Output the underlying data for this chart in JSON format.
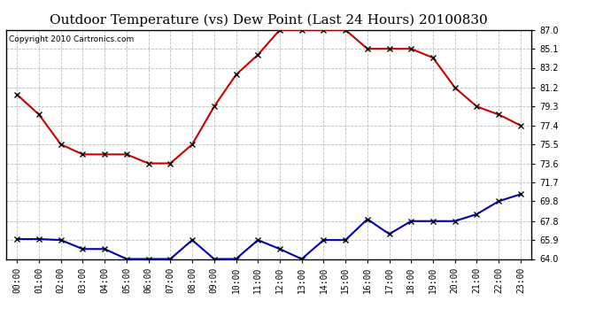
{
  "title": "Outdoor Temperature (vs) Dew Point (Last 24 Hours) 20100830",
  "copyright": "Copyright 2010 Cartronics.com",
  "hours": [
    "00:00",
    "01:00",
    "02:00",
    "03:00",
    "04:00",
    "05:00",
    "06:00",
    "07:00",
    "08:00",
    "09:00",
    "10:00",
    "11:00",
    "12:00",
    "13:00",
    "14:00",
    "15:00",
    "16:00",
    "17:00",
    "18:00",
    "19:00",
    "20:00",
    "21:00",
    "22:00",
    "23:00"
  ],
  "temp": [
    80.5,
    78.5,
    75.5,
    74.5,
    74.5,
    74.5,
    73.6,
    73.6,
    75.5,
    79.3,
    82.5,
    84.5,
    87.0,
    87.0,
    87.0,
    87.0,
    85.1,
    85.1,
    85.1,
    84.2,
    81.2,
    79.3,
    78.5,
    77.4
  ],
  "dewpoint": [
    66.0,
    66.0,
    65.9,
    65.0,
    65.0,
    64.0,
    64.0,
    64.0,
    65.9,
    64.0,
    64.0,
    65.9,
    65.0,
    64.0,
    65.9,
    65.9,
    68.0,
    66.5,
    67.8,
    67.8,
    67.8,
    68.5,
    69.8,
    70.5
  ],
  "temp_color": "#cc0000",
  "dew_color": "#0000bb",
  "ylim_min": 64.0,
  "ylim_max": 87.0,
  "yticks": [
    64.0,
    65.9,
    67.8,
    69.8,
    71.7,
    73.6,
    75.5,
    77.4,
    79.3,
    81.2,
    83.2,
    85.1,
    87.0
  ],
  "ytick_labels": [
    "64.0",
    "65.9",
    "67.8",
    "69.8",
    "71.7",
    "73.6",
    "75.5",
    "77.4",
    "79.3",
    "81.2",
    "83.2",
    "85.1",
    "87.0"
  ],
  "background_color": "#ffffff",
  "grid_color": "#bbbbbb",
  "line_width": 1.5,
  "marker": "x",
  "marker_size": 4,
  "marker_color": "#000000",
  "title_fontsize": 11,
  "tick_fontsize": 7,
  "copyright_fontsize": 6.5
}
